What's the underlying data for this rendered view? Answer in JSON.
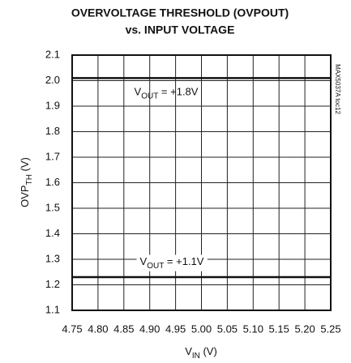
{
  "chart_data": {
    "type": "line",
    "title": "OVERVOLTAGE THRESHOLD (OVPOUT)",
    "subtitle": "vs. INPUT VOLTAGE",
    "x_label": "VIN (V)",
    "y_label": "OVPTH (V)",
    "annotation": "MAX5037A toc12",
    "x": [
      4.75,
      5.25
    ],
    "series": [
      {
        "name": "VOUT = +1.8V",
        "color": "#111111",
        "values": [
          2.01,
          2.01
        ]
      },
      {
        "name": "VOUT = +1.1V",
        "color": "#111111",
        "values": [
          1.23,
          1.23
        ]
      }
    ],
    "xlim": [
      4.75,
      5.25
    ],
    "xticks": [
      4.75,
      {
        "value": 4.8,
        "label": "4.80"
      },
      4.85,
      {
        "value": 4.9,
        "label": "4.90"
      },
      4.95,
      {
        "value": 5,
        "label": "5.00"
      },
      5.05,
      {
        "value": 5.1,
        "label": "5.10"
      },
      5.15,
      {
        "value": 5.2,
        "label": "5.20"
      },
      5.25
    ],
    "ylim": [
      1.1,
      2.1
    ],
    "yticks": [
      1.1,
      1.2,
      1.3,
      1.4,
      1.5,
      1.6,
      1.7,
      1.8,
      1.9,
      {
        "value": 2,
        "label": "2.0"
      },
      2.1
    ],
    "grid": true
  }
}
